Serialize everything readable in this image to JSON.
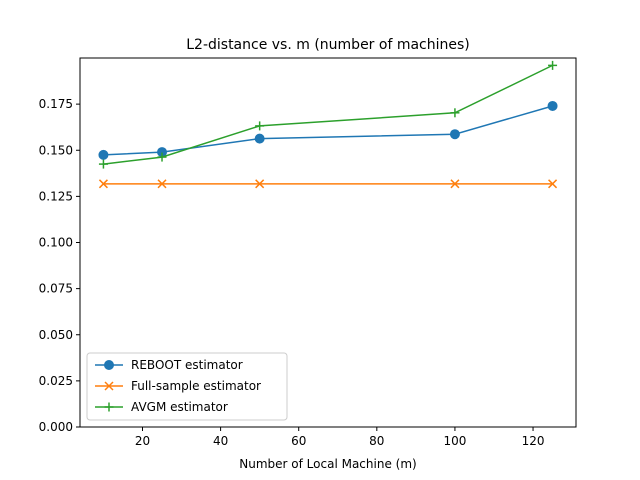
{
  "chart_data": {
    "type": "line",
    "title": "L2-distance vs. m (number of machines)",
    "xlabel": "Number of Local Machine (m)",
    "ylabel": "",
    "xlim": [
      4,
      131
    ],
    "ylim": [
      0.0,
      0.2
    ],
    "x": [
      10,
      25,
      50,
      100,
      125
    ],
    "xticks": [
      20,
      40,
      60,
      80,
      100,
      120
    ],
    "yticks": [
      0.0,
      0.025,
      0.05,
      0.075,
      0.1,
      0.125,
      0.15,
      0.175
    ],
    "grid": false,
    "legend_position": "lower-left",
    "series": [
      {
        "name": "REBOOT estimator",
        "values": [
          0.1475,
          0.149,
          0.1563,
          0.1587,
          0.174
        ],
        "color": "#1f77b4",
        "marker": "circle"
      },
      {
        "name": "Full-sample estimator",
        "values": [
          0.1318,
          0.1318,
          0.1318,
          0.1318,
          0.1318
        ],
        "color": "#ff7f0e",
        "marker": "x"
      },
      {
        "name": "AVGM estimator",
        "values": [
          0.1425,
          0.1463,
          0.1632,
          0.1703,
          0.196
        ],
        "color": "#2ca02c",
        "marker": "plus"
      }
    ]
  }
}
